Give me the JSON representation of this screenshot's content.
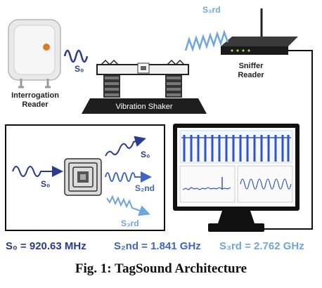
{
  "labels": {
    "s0_top": "S₀",
    "s3rd_top": "S₃rd",
    "interrogation_reader": [
      "Interrogation",
      "Reader"
    ],
    "vibration_shaker": "Vibration Shaker",
    "sniffer_reader": [
      "Sniffer",
      "Reader"
    ],
    "s0_in": "S₀",
    "s0_out": "S₀",
    "s2nd_out": "S₂nd",
    "s3rd_out": "S₃rd"
  },
  "frequencies": {
    "s0": "S₀ = 920.63 MHz",
    "s2nd": "S₂nd = 1.841 GHz",
    "s3rd": "S₃rd = 2.762 GHz"
  },
  "caption": "Fig. 1: TagSound Architecture",
  "colors": {
    "dark_blue": "#2a3c8c",
    "mid_blue": "#3f66c4",
    "light_blue": "#6fa6df",
    "ink": "#111111"
  }
}
